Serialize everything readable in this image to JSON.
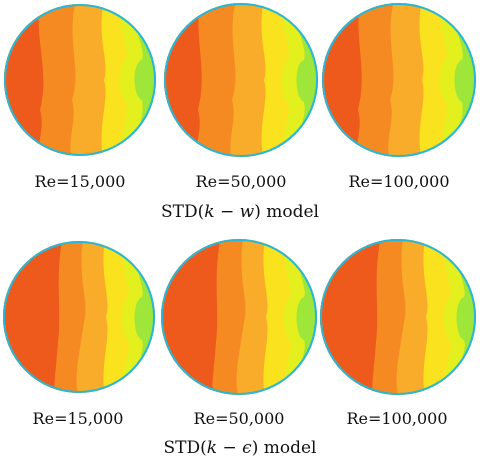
{
  "rows": [
    {
      "caption_prefix": "STD(",
      "caption_k": "k",
      "caption_minus": " − ",
      "caption_var": "w",
      "caption_suffix": ") model",
      "panels": [
        {
          "label": "Re=15,000"
        },
        {
          "label": "Re=50,000"
        },
        {
          "label": "Re=100,000"
        }
      ]
    },
    {
      "caption_prefix": "STD(",
      "caption_k": "k",
      "caption_minus": " − ",
      "caption_var": "ϵ",
      "caption_suffix": ") model",
      "panels": [
        {
          "label": "Re=15,000"
        },
        {
          "label": "Re=50,000"
        },
        {
          "label": "Re=100,000"
        }
      ]
    }
  ],
  "colors": {
    "core": "#ee5a1c",
    "orange": "#f68a22",
    "light_orange": "#f9ac2a",
    "yellow": "#fbe21e",
    "yellow_green": "#e4f01e",
    "green": "#9ee63a",
    "teal": "#3fd49a",
    "cyan": "#28b7d8",
    "rim": "#1e8fd0"
  }
}
